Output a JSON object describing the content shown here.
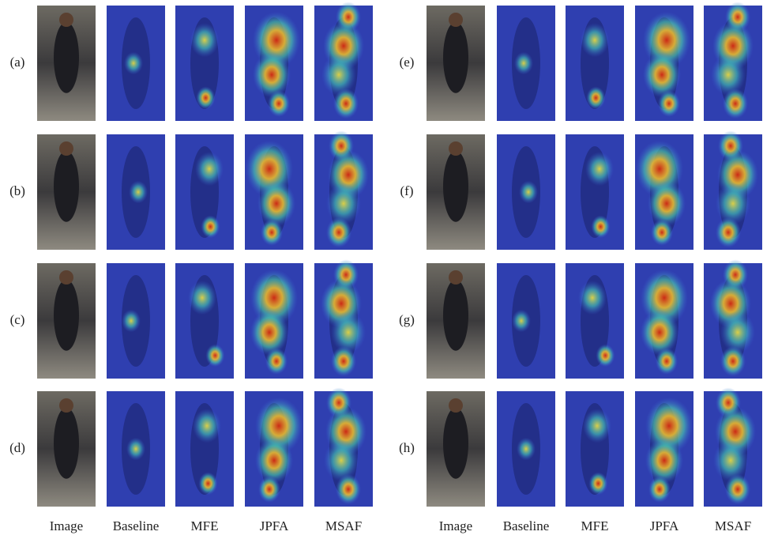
{
  "left": {
    "rows": [
      "(a)",
      "(b)",
      "(c)",
      "(d)"
    ],
    "columns": [
      "Image",
      "Baseline",
      "MFE",
      "JPFA",
      "MSAF"
    ]
  },
  "right": {
    "rows": [
      "(e)",
      "(f)",
      "(g)",
      "(h)"
    ],
    "columns": [
      "Image",
      "Baseline",
      "MFE",
      "JPFA",
      "MSAF"
    ]
  }
}
